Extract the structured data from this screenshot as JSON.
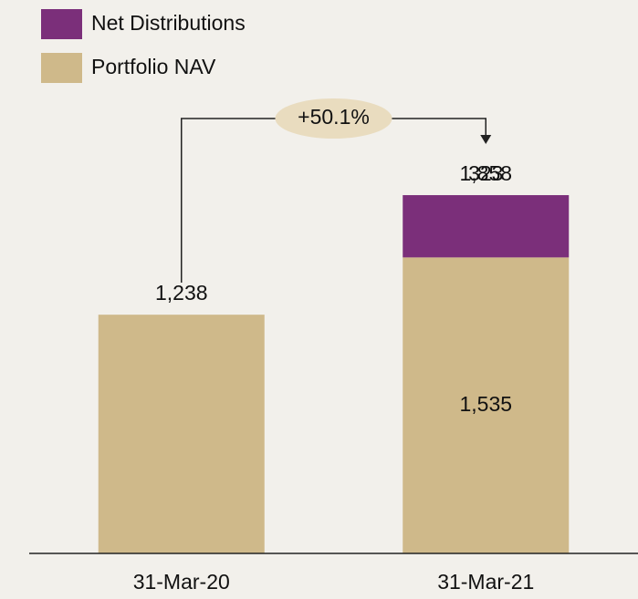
{
  "chart_data": {
    "type": "stacked_bar",
    "categories": [
      "31-Mar-20",
      "31-Mar-21"
    ],
    "series": [
      {
        "name": "Portfolio NAV",
        "color": "#cfb98a",
        "label_color": "#111111",
        "values": [
          1238,
          1535
        ],
        "value_labels": [
          "1,238",
          "1,535"
        ]
      },
      {
        "name": "Net Distributions",
        "color": "#7b2f7a",
        "label_color": "#ffffff",
        "values": [
          null,
          323
        ],
        "value_labels": [
          null,
          "323"
        ]
      }
    ],
    "totals": [
      null,
      1858
    ],
    "total_labels": [
      null,
      "1,858"
    ],
    "annotation": "+50.1%",
    "ylim": [
      0,
      2000
    ],
    "legend": "top-left"
  }
}
